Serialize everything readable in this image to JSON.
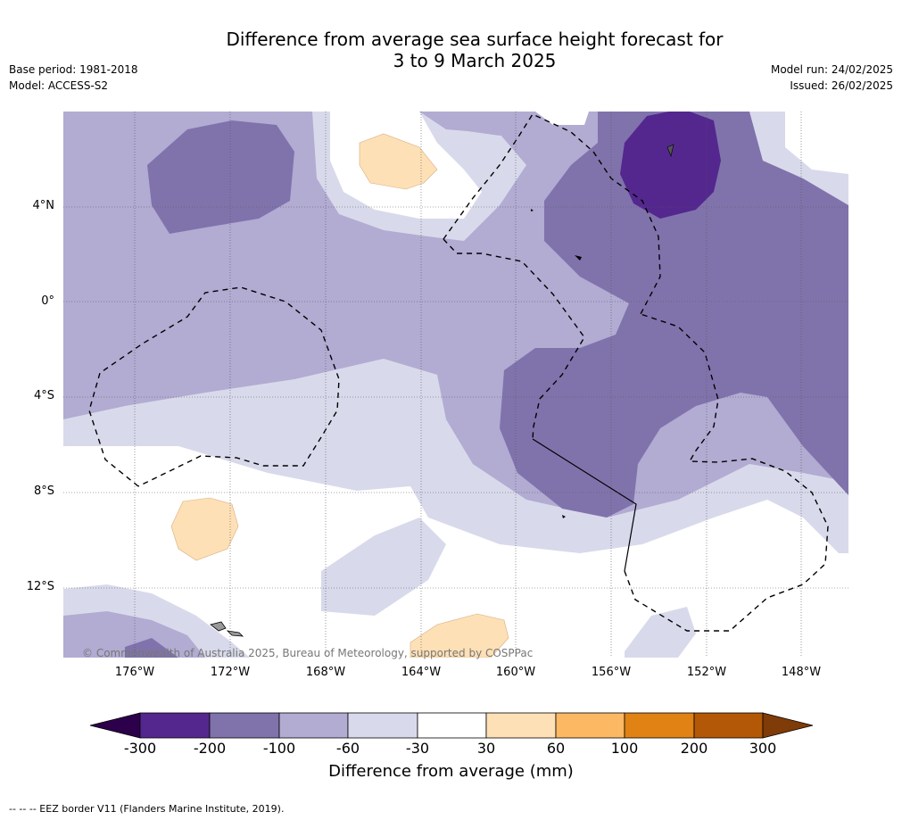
{
  "title": {
    "line1": "Difference from average sea surface height forecast for",
    "line2": "3 to 9 March 2025"
  },
  "meta": {
    "base_period": "Base period: 1981-2018",
    "model": "Model: ACCESS-S2",
    "model_run": "Model run: 24/02/2025",
    "issued": "Issued: 26/02/2025"
  },
  "map": {
    "lat_labels": [
      "4°N",
      "0°",
      "4°S",
      "8°S",
      "12°S"
    ],
    "lon_labels": [
      "176°W",
      "172°W",
      "168°W",
      "164°W",
      "160°W",
      "156°W",
      "152°W",
      "148°W"
    ],
    "copyright": "© Commonwealth of Australia 2025, Bureau of Meteorology, supported by COSPPac"
  },
  "colorbar": {
    "ticks": [
      "-300",
      "-200",
      "-100",
      "-60",
      "-30",
      "30",
      "60",
      "100",
      "200",
      "300"
    ],
    "colors": [
      "#54278f",
      "#8073ac",
      "#b2abd2",
      "#d8daeb",
      "#ffffff",
      "#fee0b6",
      "#fdb863",
      "#e08214",
      "#b35806"
    ],
    "extend_low_color": "#2d004b",
    "extend_high_color": "#7f3b08",
    "title": "Difference from average (mm)"
  },
  "footer": "--  --  -- EEZ border V11 (Flanders Marine Institute, 2019)."
}
